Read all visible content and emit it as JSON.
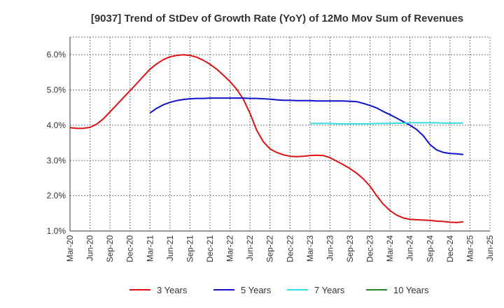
{
  "chart_data": {
    "type": "line",
    "title": "[9037]  Trend of StDev of Growth Rate (YoY) of 12Mo Mov Sum of Revenues",
    "xlabel": "",
    "ylabel": "",
    "x_ticks": [
      "Mar-20",
      "Jun-20",
      "Sep-20",
      "Dec-20",
      "Mar-21",
      "Jun-21",
      "Sep-21",
      "Dec-21",
      "Mar-22",
      "Jun-22",
      "Sep-22",
      "Dec-22",
      "Mar-23",
      "Jun-23",
      "Sep-23",
      "Dec-23",
      "Mar-24",
      "Jun-24",
      "Sep-24",
      "Dec-24",
      "Mar-25",
      "Jun-25"
    ],
    "y_ticks": [
      "1.0%",
      "2.0%",
      "3.0%",
      "4.0%",
      "5.0%",
      "6.0%"
    ],
    "ylim": [
      1.0,
      6.5
    ],
    "grid": true,
    "legend_position": "bottom",
    "series": [
      {
        "name": "3 Years",
        "color": "#dd1111",
        "start_index": 0,
        "values": [
          3.93,
          3.91,
          3.91,
          3.94,
          4.03,
          4.18,
          4.38,
          4.58,
          4.78,
          4.98,
          5.18,
          5.39,
          5.59,
          5.74,
          5.86,
          5.94,
          5.98,
          6.0,
          5.98,
          5.93,
          5.84,
          5.73,
          5.59,
          5.42,
          5.24,
          5.02,
          4.74,
          4.34,
          3.86,
          3.53,
          3.33,
          3.23,
          3.16,
          3.12,
          3.11,
          3.12,
          3.14,
          3.15,
          3.14,
          3.08,
          2.98,
          2.88,
          2.77,
          2.64,
          2.48,
          2.27,
          2.0,
          1.76,
          1.58,
          1.45,
          1.37,
          1.33,
          1.32,
          1.31,
          1.3,
          1.28,
          1.27,
          1.25,
          1.24,
          1.26
        ]
      },
      {
        "name": "5 Years",
        "color": "#1111cc",
        "start_index": 12,
        "values": [
          4.35,
          4.48,
          4.58,
          4.65,
          4.7,
          4.73,
          4.75,
          4.76,
          4.76,
          4.77,
          4.77,
          4.77,
          4.77,
          4.77,
          4.77,
          4.76,
          4.76,
          4.75,
          4.74,
          4.72,
          4.71,
          4.71,
          4.7,
          4.7,
          4.7,
          4.69,
          4.69,
          4.69,
          4.69,
          4.69,
          4.68,
          4.67,
          4.62,
          4.56,
          4.49,
          4.39,
          4.3,
          4.2,
          4.1,
          4.0,
          3.88,
          3.7,
          3.45,
          3.3,
          3.23,
          3.2,
          3.19,
          3.17
        ]
      },
      {
        "name": "7 Years",
        "color": "#33dddd",
        "start_index": 36,
        "values": [
          4.05,
          4.05,
          4.05,
          4.05,
          4.04,
          4.04,
          4.04,
          4.04,
          4.04,
          4.04,
          4.05,
          4.05,
          4.05,
          4.06,
          4.06,
          4.07,
          4.07,
          4.07,
          4.07,
          4.07,
          4.06,
          4.06,
          4.06,
          4.06
        ]
      },
      {
        "name": "10 Years",
        "color": "#228822",
        "start_index": 0,
        "values": []
      }
    ]
  }
}
